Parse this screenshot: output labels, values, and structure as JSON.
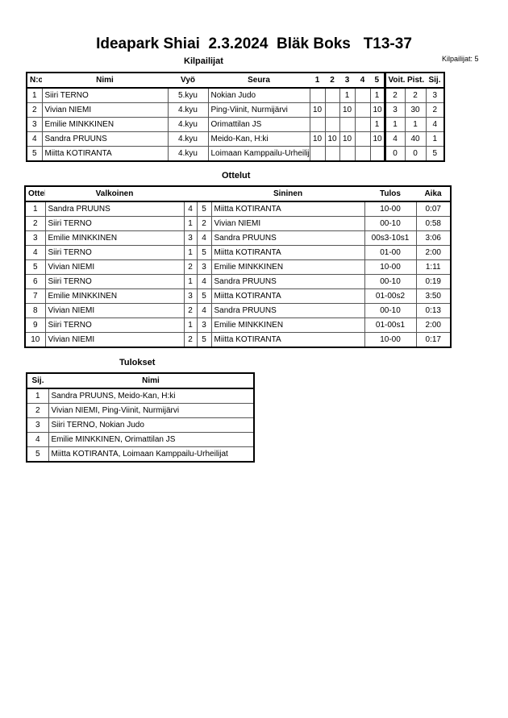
{
  "title": "Ideapark Shiai  2.3.2024  Bläk Boks   T13-37",
  "competitors_count": "Kilpailijat: 5",
  "competitors": {
    "heading": "Kilpailijat",
    "columns": [
      "N:o",
      "Nimi",
      "Vyö",
      "Seura",
      "1",
      "2",
      "3",
      "4",
      "5",
      "Voit.",
      "Pist.",
      "Sij."
    ],
    "rows": [
      [
        "1",
        "Siiri TERNO",
        "5.kyu",
        "Nokian Judo",
        "",
        "",
        "1",
        "",
        "1",
        "2",
        "2",
        "3"
      ],
      [
        "2",
        "Vivian NIEMI",
        "4.kyu",
        "Ping-Viinit, Nurmijärvi",
        "10",
        "",
        "10",
        "",
        "10",
        "3",
        "30",
        "2"
      ],
      [
        "3",
        "Emilie MINKKINEN",
        "4.kyu",
        "Orimattilan JS",
        "",
        "",
        "",
        "",
        "1",
        "1",
        "1",
        "4"
      ],
      [
        "4",
        "Sandra PRUUNS",
        "4.kyu",
        "Meido-Kan, H:ki",
        "10",
        "10",
        "10",
        "",
        "10",
        "4",
        "40",
        "1"
      ],
      [
        "5",
        "Miitta KOTIRANTA",
        "4.kyu",
        "Loimaan Kamppailu-Urheilijat",
        "",
        "",
        "",
        "",
        "",
        "0",
        "0",
        "5"
      ]
    ]
  },
  "matches": {
    "heading": "Ottelut",
    "columns": [
      "Ottelu",
      "Valkoinen",
      "",
      "",
      "Sininen",
      "Tulos",
      "Aika"
    ],
    "rows": [
      [
        "1",
        "Sandra PRUUNS",
        "4",
        "5",
        "Miitta KOTIRANTA",
        "10-00",
        "0:07"
      ],
      [
        "2",
        "Siiri TERNO",
        "1",
        "2",
        "Vivian NIEMI",
        "00-10",
        "0:58"
      ],
      [
        "3",
        "Emilie MINKKINEN",
        "3",
        "4",
        "Sandra PRUUNS",
        "00s3-10s1",
        "3:06"
      ],
      [
        "4",
        "Siiri TERNO",
        "1",
        "5",
        "Miitta KOTIRANTA",
        "01-00",
        "2:00"
      ],
      [
        "5",
        "Vivian NIEMI",
        "2",
        "3",
        "Emilie MINKKINEN",
        "10-00",
        "1:11"
      ],
      [
        "6",
        "Siiri TERNO",
        "1",
        "4",
        "Sandra PRUUNS",
        "00-10",
        "0:19"
      ],
      [
        "7",
        "Emilie MINKKINEN",
        "3",
        "5",
        "Miitta KOTIRANTA",
        "01-00s2",
        "3:50"
      ],
      [
        "8",
        "Vivian NIEMI",
        "2",
        "4",
        "Sandra PRUUNS",
        "00-10",
        "0:13"
      ],
      [
        "9",
        "Siiri TERNO",
        "1",
        "3",
        "Emilie MINKKINEN",
        "01-00s1",
        "2:00"
      ],
      [
        "10",
        "Vivian NIEMI",
        "2",
        "5",
        "Miitta KOTIRANTA",
        "10-00",
        "0:17"
      ]
    ]
  },
  "results": {
    "heading": "Tulokset",
    "columns": [
      "Sij.",
      "Nimi"
    ],
    "rows": [
      [
        "1",
        "Sandra PRUUNS, Meido-Kan, H:ki"
      ],
      [
        "2",
        "Vivian NIEMI, Ping-Viinit, Nurmijärvi"
      ],
      [
        "3",
        "Siiri TERNO, Nokian Judo"
      ],
      [
        "4",
        "Emilie MINKKINEN, Orimattilan JS"
      ],
      [
        "5",
        "Miitta KOTIRANTA, Loimaan Kamppailu-Urheilijat"
      ]
    ]
  }
}
